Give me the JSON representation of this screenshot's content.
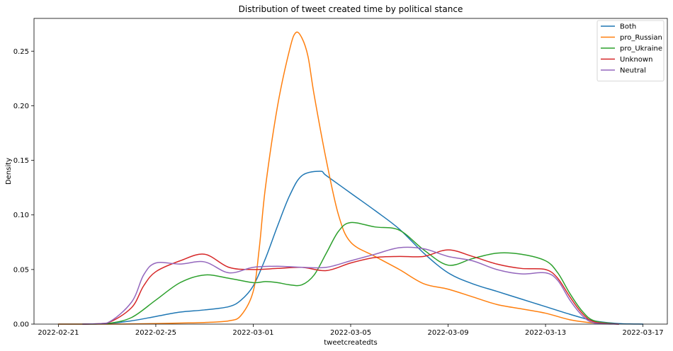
{
  "chart_data": {
    "type": "line",
    "title": "Distribution of tweet created time by political stance",
    "xlabel": "tweetcreatedts",
    "ylabel": "Density",
    "x_ticks": [
      "2022-02-21",
      "2022-02-25",
      "2022-03-01",
      "2022-03-05",
      "2022-03-09",
      "2022-03-13",
      "2022-03-17"
    ],
    "y_ticks": [
      "0.00",
      "0.05",
      "0.10",
      "0.15",
      "0.20",
      "0.25"
    ],
    "xlim": [
      "2022-02-20",
      "2022-03-18"
    ],
    "ylim": [
      0,
      0.28
    ],
    "grid": false,
    "legend_position": "top-right",
    "series": [
      {
        "name": "Both",
        "color": "#1f77b4",
        "x": [
          "2022-02-21",
          "2022-02-22",
          "2022-02-23",
          "2022-02-24",
          "2022-02-25",
          "2022-02-26",
          "2022-02-27",
          "2022-02-28",
          "2022-02-28T12:00",
          "2022-03-01",
          "2022-03-01T12:00",
          "2022-03-02",
          "2022-03-02T12:00",
          "2022-03-03",
          "2022-03-03T18:00",
          "2022-03-04",
          "2022-03-05",
          "2022-03-06",
          "2022-03-07",
          "2022-03-08",
          "2022-03-09",
          "2022-03-10",
          "2022-03-11",
          "2022-03-12",
          "2022-03-13",
          "2022-03-14",
          "2022-03-15",
          "2022-03-16",
          "2022-03-17"
        ],
        "y": [
          0.0,
          0.0,
          0.0005,
          0.003,
          0.007,
          0.011,
          0.013,
          0.016,
          0.022,
          0.035,
          0.06,
          0.09,
          0.118,
          0.136,
          0.14,
          0.136,
          0.12,
          0.104,
          0.087,
          0.065,
          0.047,
          0.037,
          0.03,
          0.023,
          0.016,
          0.009,
          0.003,
          0.0005,
          0.0
        ]
      },
      {
        "name": "pro_Russian",
        "color": "#ff7f0e",
        "x": [
          "2022-02-21",
          "2022-02-23",
          "2022-02-24",
          "2022-02-25",
          "2022-02-26",
          "2022-02-27",
          "2022-02-28",
          "2022-02-28T12:00",
          "2022-03-01",
          "2022-03-01T06:00",
          "2022-03-01T12:00",
          "2022-03-02",
          "2022-03-02T12:00",
          "2022-03-02T18:00",
          "2022-03-03",
          "2022-03-03T06:00",
          "2022-03-03T12:00",
          "2022-03-04",
          "2022-03-04T12:00",
          "2022-03-05",
          "2022-03-06",
          "2022-03-07",
          "2022-03-08",
          "2022-03-09",
          "2022-03-10",
          "2022-03-11",
          "2022-03-12",
          "2022-03-13",
          "2022-03-14",
          "2022-03-15",
          "2022-03-16"
        ],
        "y": [
          0.0,
          0.0,
          0.0002,
          0.0005,
          0.001,
          0.0015,
          0.003,
          0.008,
          0.03,
          0.07,
          0.125,
          0.2,
          0.252,
          0.267,
          0.262,
          0.245,
          0.21,
          0.15,
          0.1,
          0.075,
          0.062,
          0.05,
          0.037,
          0.032,
          0.025,
          0.018,
          0.014,
          0.01,
          0.004,
          0.001,
          0.0
        ]
      },
      {
        "name": "pro_Ukraine",
        "color": "#2ca02c",
        "x": [
          "2022-02-22",
          "2022-02-23",
          "2022-02-24",
          "2022-02-25",
          "2022-02-26",
          "2022-02-27",
          "2022-02-28",
          "2022-03-01",
          "2022-03-01T12:00",
          "2022-03-02",
          "2022-03-02T12:00",
          "2022-03-03",
          "2022-03-03T12:00",
          "2022-03-04",
          "2022-03-04T12:00",
          "2022-03-05",
          "2022-03-06",
          "2022-03-07",
          "2022-03-08",
          "2022-03-09",
          "2022-03-10",
          "2022-03-11",
          "2022-03-12",
          "2022-03-13",
          "2022-03-13T12:00",
          "2022-03-14",
          "2022-03-14T12:00",
          "2022-03-15",
          "2022-03-16"
        ],
        "y": [
          0.0,
          0.0005,
          0.006,
          0.022,
          0.038,
          0.045,
          0.042,
          0.038,
          0.039,
          0.038,
          0.036,
          0.036,
          0.045,
          0.065,
          0.085,
          0.093,
          0.089,
          0.086,
          0.068,
          0.054,
          0.06,
          0.065,
          0.064,
          0.058,
          0.047,
          0.028,
          0.012,
          0.003,
          0.0
        ]
      },
      {
        "name": "Unknown",
        "color": "#d62728",
        "x": [
          "2022-02-22",
          "2022-02-23",
          "2022-02-24",
          "2022-02-24T12:00",
          "2022-02-25",
          "2022-02-26",
          "2022-02-27",
          "2022-02-28",
          "2022-03-01",
          "2022-03-02",
          "2022-03-03",
          "2022-03-04",
          "2022-03-05",
          "2022-03-06",
          "2022-03-07",
          "2022-03-08",
          "2022-03-09",
          "2022-03-10",
          "2022-03-11",
          "2022-03-12",
          "2022-03-13",
          "2022-03-13T12:00",
          "2022-03-14",
          "2022-03-14T12:00",
          "2022-03-15",
          "2022-03-16"
        ],
        "y": [
          0.0,
          0.001,
          0.015,
          0.035,
          0.048,
          0.058,
          0.064,
          0.052,
          0.05,
          0.051,
          0.052,
          0.049,
          0.056,
          0.061,
          0.062,
          0.062,
          0.068,
          0.062,
          0.055,
          0.051,
          0.05,
          0.042,
          0.025,
          0.01,
          0.002,
          0.0
        ]
      },
      {
        "name": "Neutral",
        "color": "#9467bd",
        "x": [
          "2022-02-22",
          "2022-02-23",
          "2022-02-24",
          "2022-02-24T12:00",
          "2022-02-25",
          "2022-02-26",
          "2022-02-27",
          "2022-02-28",
          "2022-03-01",
          "2022-03-02",
          "2022-03-03",
          "2022-03-04",
          "2022-03-05",
          "2022-03-06",
          "2022-03-07",
          "2022-03-08",
          "2022-03-09",
          "2022-03-10",
          "2022-03-11",
          "2022-03-12",
          "2022-03-13",
          "2022-03-13T12:00",
          "2022-03-14",
          "2022-03-14T12:00",
          "2022-03-15",
          "2022-03-16"
        ],
        "y": [
          0.0,
          0.001,
          0.02,
          0.045,
          0.056,
          0.055,
          0.057,
          0.047,
          0.052,
          0.053,
          0.052,
          0.052,
          0.058,
          0.064,
          0.07,
          0.069,
          0.062,
          0.058,
          0.05,
          0.046,
          0.047,
          0.04,
          0.022,
          0.008,
          0.001,
          0.0
        ]
      }
    ]
  }
}
